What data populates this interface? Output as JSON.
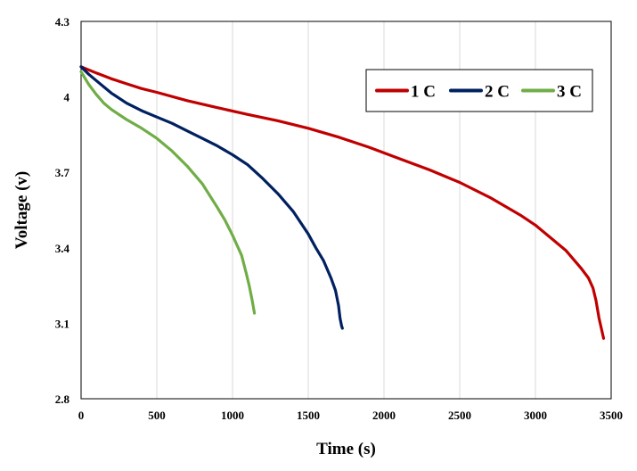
{
  "chart_data": {
    "type": "line",
    "title": "",
    "xlabel": "Time (s)",
    "ylabel": "Voltage (v)",
    "xlim": [
      0,
      3500
    ],
    "ylim": [
      2.8,
      4.3
    ],
    "x_ticks": [
      "0",
      "500",
      "1000",
      "1500",
      "2000",
      "2500",
      "3000",
      "3500"
    ],
    "y_ticks": [
      "2.8",
      "3.1",
      "3.4",
      "3.7",
      "4",
      "4.3"
    ],
    "grid": "vertical",
    "legend_position": "top-right",
    "series": [
      {
        "name": "1 C",
        "color": "#C00000",
        "x": [
          0,
          100,
          200,
          300,
          400,
          500,
          700,
          900,
          1100,
          1300,
          1500,
          1700,
          1900,
          2100,
          2300,
          2500,
          2700,
          2900,
          3000,
          3100,
          3200,
          3300,
          3350,
          3380,
          3400,
          3420,
          3450
        ],
        "y": [
          4.12,
          4.095,
          4.072,
          4.052,
          4.033,
          4.018,
          3.985,
          3.957,
          3.93,
          3.905,
          3.875,
          3.84,
          3.8,
          3.755,
          3.71,
          3.66,
          3.6,
          3.53,
          3.49,
          3.44,
          3.39,
          3.32,
          3.28,
          3.24,
          3.19,
          3.12,
          3.04
        ]
      },
      {
        "name": "2 C",
        "color": "#002060",
        "x": [
          0,
          50,
          100,
          200,
          300,
          400,
          500,
          600,
          700,
          800,
          900,
          1000,
          1100,
          1200,
          1300,
          1400,
          1500,
          1550,
          1600,
          1650,
          1680,
          1700,
          1710,
          1720,
          1725
        ],
        "y": [
          4.12,
          4.09,
          4.065,
          4.015,
          3.975,
          3.945,
          3.92,
          3.895,
          3.865,
          3.835,
          3.805,
          3.77,
          3.73,
          3.675,
          3.615,
          3.545,
          3.455,
          3.4,
          3.35,
          3.28,
          3.23,
          3.17,
          3.12,
          3.09,
          3.08
        ]
      },
      {
        "name": "3 C",
        "color": "#70AD47",
        "x": [
          0,
          50,
          100,
          150,
          200,
          300,
          400,
          500,
          600,
          700,
          800,
          900,
          950,
          1000,
          1030,
          1060,
          1090,
          1110,
          1130,
          1145
        ],
        "y": [
          4.1,
          4.05,
          4.01,
          3.975,
          3.95,
          3.91,
          3.875,
          3.835,
          3.785,
          3.725,
          3.655,
          3.56,
          3.51,
          3.45,
          3.41,
          3.37,
          3.3,
          3.25,
          3.19,
          3.14
        ]
      }
    ]
  }
}
